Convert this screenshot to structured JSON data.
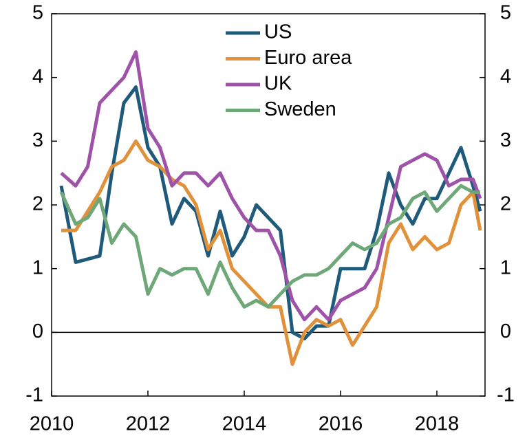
{
  "chart_data": {
    "type": "line",
    "x": [
      2010.2,
      2010.5,
      2010.75,
      2011.0,
      2011.25,
      2011.5,
      2011.75,
      2012.0,
      2012.25,
      2012.5,
      2012.75,
      2013.0,
      2013.25,
      2013.5,
      2013.75,
      2014.0,
      2014.25,
      2014.5,
      2014.75,
      2015.0,
      2015.25,
      2015.5,
      2015.75,
      2016.0,
      2016.25,
      2016.5,
      2016.75,
      2017.0,
      2017.25,
      2017.5,
      2017.75,
      2018.0,
      2018.25,
      2018.5,
      2018.75,
      2018.9
    ],
    "series": [
      {
        "name": "US",
        "color": "#1f5a7a",
        "values": [
          2.3,
          1.1,
          1.15,
          1.2,
          2.5,
          3.6,
          3.85,
          2.9,
          2.6,
          1.7,
          2.1,
          1.9,
          1.2,
          1.9,
          1.2,
          1.5,
          2.0,
          1.8,
          1.6,
          0.0,
          -0.1,
          0.1,
          0.1,
          1.0,
          1.0,
          1.0,
          1.6,
          2.5,
          2.0,
          1.7,
          2.1,
          2.1,
          2.5,
          2.9,
          2.3,
          1.9
        ]
      },
      {
        "name": "Euro area",
        "color": "#e0913a",
        "values": [
          1.6,
          1.6,
          1.9,
          2.2,
          2.6,
          2.7,
          3.0,
          2.7,
          2.6,
          2.4,
          2.3,
          2.0,
          1.3,
          1.6,
          1.0,
          0.8,
          0.6,
          0.4,
          0.4,
          -0.5,
          0.0,
          0.2,
          0.1,
          0.2,
          -0.2,
          0.1,
          0.4,
          1.4,
          1.7,
          1.3,
          1.5,
          1.3,
          1.4,
          2.0,
          2.2,
          1.6
        ]
      },
      {
        "name": "UK",
        "color": "#9e52a8",
        "values": [
          2.5,
          2.3,
          2.6,
          3.6,
          3.8,
          4.0,
          4.4,
          3.2,
          2.9,
          2.3,
          2.5,
          2.5,
          2.3,
          2.5,
          2.1,
          1.8,
          1.6,
          1.6,
          1.2,
          0.5,
          0.2,
          0.4,
          0.2,
          0.5,
          0.6,
          0.7,
          1.0,
          1.8,
          2.6,
          2.7,
          2.8,
          2.7,
          2.3,
          2.4,
          2.4,
          2.1
        ]
      },
      {
        "name": "Sweden",
        "color": "#6fa878",
        "values": [
          2.2,
          1.7,
          1.8,
          2.1,
          1.4,
          1.7,
          1.5,
          0.6,
          1.0,
          0.9,
          1.0,
          1.0,
          0.6,
          1.1,
          0.7,
          0.4,
          0.5,
          0.4,
          0.6,
          0.8,
          0.9,
          0.9,
          1.0,
          1.2,
          1.4,
          1.3,
          1.4,
          1.7,
          1.8,
          2.1,
          2.2,
          1.9,
          2.1,
          2.3,
          2.2,
          2.2
        ]
      }
    ],
    "xlim": [
      2010,
      2019
    ],
    "xticks": [
      2010,
      2012,
      2014,
      2016,
      2018
    ],
    "ylim": [
      -1,
      5
    ],
    "yticks": [
      -1,
      0,
      1,
      2,
      3,
      4,
      5
    ],
    "zero_line": true
  }
}
